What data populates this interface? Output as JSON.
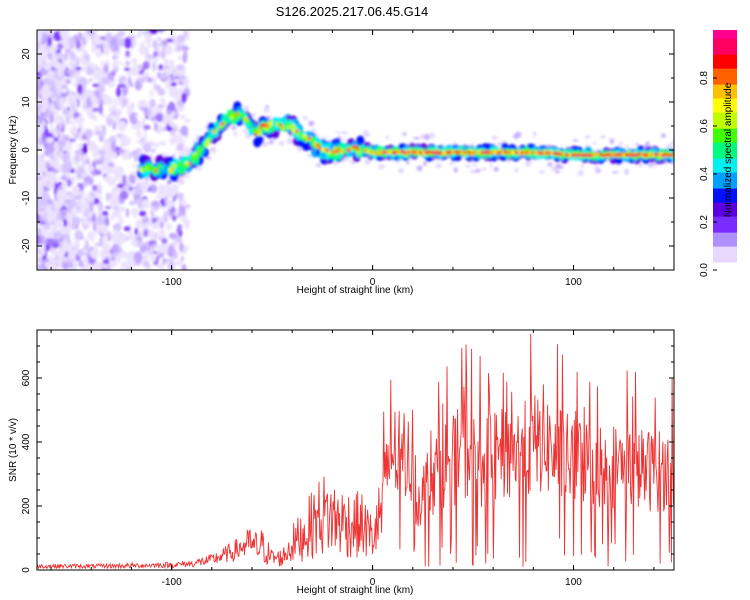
{
  "title": "S126.2025.217.06.45.G14",
  "chart_data": [
    {
      "type": "heatmap",
      "xlabel": "Height of straight line (km)",
      "ylabel": "Frequency (Hz)",
      "xlim": [
        -167,
        150
      ],
      "ylim": [
        -25,
        25
      ],
      "xticks": [
        -100,
        0,
        100
      ],
      "yticks": [
        -20,
        -10,
        0,
        10,
        20
      ],
      "colorbar": {
        "label": "Normalized spectral amplitude",
        "range": [
          0,
          1
        ],
        "ticks": [
          0.0,
          0.2,
          0.4,
          0.6,
          0.8
        ],
        "colormap": [
          "#ffffff",
          "#e8d8ff",
          "#b090ff",
          "#7a2cff",
          "#5a00e0",
          "#0010ff",
          "#00a0ff",
          "#00f0f0",
          "#00ff80",
          "#40ff00",
          "#c0ff00",
          "#ffff00",
          "#ffc000",
          "#ff6000",
          "#ff0000",
          "#ff0060",
          "#ff0090"
        ]
      },
      "ridge": {
        "x": [
          -110,
          -100,
          -90,
          -85,
          -80,
          -75,
          -70,
          -65,
          -62,
          -58,
          -55,
          -50,
          -45,
          -40,
          -35,
          -30,
          -25,
          -20,
          -15,
          -10,
          -5,
          0,
          20,
          40,
          60,
          80,
          100,
          120,
          150
        ],
        "y": [
          -4,
          -4,
          -2.5,
          0,
          3,
          5.5,
          7,
          7.5,
          6,
          3,
          5,
          5.5,
          5,
          4.5,
          3,
          2,
          0,
          -0.5,
          0,
          0.5,
          0,
          -0.5,
          -0.5,
          -0.5,
          -0.5,
          -0.5,
          -1,
          -1,
          -1
        ]
      }
    },
    {
      "type": "line",
      "xlabel": "Height of straight line (km)",
      "ylabel": "SNR (10 * v/v)",
      "xlim": [
        -167,
        150
      ],
      "ylim": [
        0,
        750
      ],
      "xticks": [
        -100,
        0,
        100
      ],
      "yticks": [
        0,
        200,
        400,
        600
      ],
      "color": "#ee3333",
      "envelope": {
        "x": [
          -167,
          -140,
          -120,
          -100,
          -90,
          -80,
          -70,
          -60,
          -55,
          -50,
          -45,
          -40,
          -35,
          -30,
          -25,
          -20,
          -15,
          -10,
          -5,
          0,
          5,
          8,
          10,
          15,
          20,
          22,
          25,
          30,
          35,
          40,
          45,
          50,
          55,
          60,
          65,
          70,
          75,
          80,
          85,
          90,
          95,
          100,
          105,
          110,
          115,
          120,
          125,
          130,
          140,
          150
        ],
        "y": [
          15,
          15,
          17,
          20,
          25,
          40,
          70,
          110,
          120,
          60,
          60,
          130,
          170,
          230,
          280,
          260,
          240,
          230,
          220,
          160,
          300,
          430,
          480,
          440,
          440,
          270,
          320,
          380,
          430,
          440,
          480,
          450,
          430,
          450,
          460,
          470,
          480,
          500,
          530,
          470,
          460,
          430,
          440,
          430,
          420,
          420,
          430,
          410,
          400,
          400
        ]
      }
    }
  ]
}
